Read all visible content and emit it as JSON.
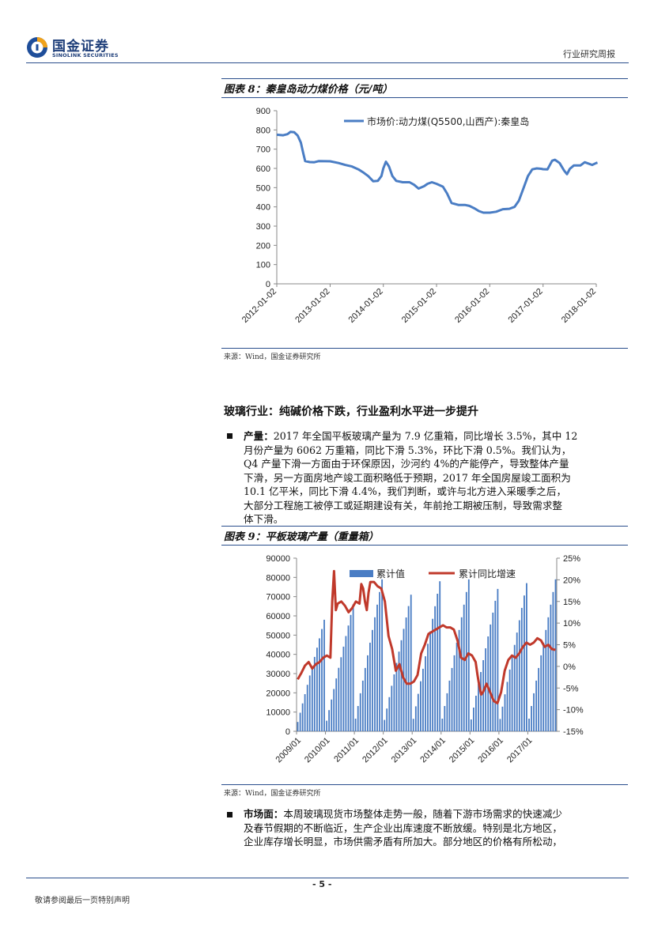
{
  "header": {
    "logo_cn": "国金证券",
    "logo_en": "SINOLINK SECURITIES",
    "report_type": "行业研究周报"
  },
  "figure8": {
    "title": "图表 8：秦皇岛动力煤价格（元/吨）",
    "source": "来源：Wind，国金证券研究所",
    "chart_data": {
      "type": "line",
      "title": "",
      "series": [
        {
          "name": "市场价:动力煤(Q5500,山西产):秦皇岛",
          "color": "#4a7dc4",
          "points": [
            [
              "2012-01-02",
              775
            ],
            [
              "2012-02-15",
              772
            ],
            [
              "2012-03-15",
              778
            ],
            [
              "2012-04-05",
              790
            ],
            [
              "2012-05-01",
              788
            ],
            [
              "2012-05-25",
              770
            ],
            [
              "2012-06-15",
              735
            ],
            [
              "2012-07-01",
              680
            ],
            [
              "2012-07-15",
              638
            ],
            [
              "2012-08-15",
              633
            ],
            [
              "2012-09-15",
              632
            ],
            [
              "2012-10-15",
              638
            ],
            [
              "2013-01-02",
              637
            ],
            [
              "2013-03-01",
              628
            ],
            [
              "2013-04-15",
              618
            ],
            [
              "2013-06-01",
              610
            ],
            [
              "2013-07-15",
              595
            ],
            [
              "2013-08-20",
              578
            ],
            [
              "2013-09-20",
              560
            ],
            [
              "2013-10-25",
              533
            ],
            [
              "2013-11-25",
              535
            ],
            [
              "2013-12-20",
              560
            ],
            [
              "2014-01-02",
              600
            ],
            [
              "2014-01-20",
              635
            ],
            [
              "2014-02-10",
              610
            ],
            [
              "2014-03-05",
              560
            ],
            [
              "2014-04-01",
              535
            ],
            [
              "2014-05-15",
              528
            ],
            [
              "2014-07-01",
              528
            ],
            [
              "2014-08-01",
              515
            ],
            [
              "2014-09-01",
              495
            ],
            [
              "2014-10-10",
              508
            ],
            [
              "2014-11-01",
              520
            ],
            [
              "2014-12-01",
              528
            ],
            [
              "2015-01-02",
              520
            ],
            [
              "2015-02-15",
              505
            ],
            [
              "2015-03-15",
              470
            ],
            [
              "2015-04-15",
              420
            ],
            [
              "2015-06-01",
              410
            ],
            [
              "2015-07-15",
              410
            ],
            [
              "2015-08-15",
              405
            ],
            [
              "2015-09-20",
              392
            ],
            [
              "2015-10-20",
              378
            ],
            [
              "2015-11-20",
              370
            ],
            [
              "2016-01-02",
              370
            ],
            [
              "2016-02-15",
              375
            ],
            [
              "2016-04-01",
              388
            ],
            [
              "2016-05-15",
              390
            ],
            [
              "2016-06-20",
              400
            ],
            [
              "2016-07-20",
              432
            ],
            [
              "2016-08-20",
              495
            ],
            [
              "2016-09-20",
              560
            ],
            [
              "2016-10-20",
              595
            ],
            [
              "2016-11-20",
              600
            ],
            [
              "2016-12-20",
              598
            ],
            [
              "2017-01-02",
              596
            ],
            [
              "2017-02-01",
              595
            ],
            [
              "2017-03-05",
              640
            ],
            [
              "2017-03-25",
              645
            ],
            [
              "2017-04-25",
              628
            ],
            [
              "2017-05-25",
              590
            ],
            [
              "2017-06-15",
              570
            ],
            [
              "2017-07-05",
              598
            ],
            [
              "2017-08-01",
              615
            ],
            [
              "2017-09-15",
              615
            ],
            [
              "2017-10-15",
              632
            ],
            [
              "2017-11-10",
              625
            ],
            [
              "2017-12-05",
              618
            ],
            [
              "2018-01-02",
              628
            ],
            [
              "2018-01-10",
              630
            ]
          ]
        }
      ],
      "x_tick_labels": [
        "2012-01-02",
        "2013-01-02",
        "2014-01-02",
        "2015-01-02",
        "2016-01-02",
        "2017-01-02",
        "2018-01-02"
      ],
      "ylim": [
        0,
        900
      ],
      "y_ticks": [
        0,
        100,
        200,
        300,
        400,
        500,
        600,
        700,
        800,
        900
      ],
      "grid": false,
      "legend": "top-center"
    }
  },
  "section": {
    "heading": "玻璃行业：纯碱价格下跌，行业盈利水平进一步提升",
    "para1_label": "产量：",
    "para1_lines": [
      "2017 年全国平板玻璃产量为 7.9 亿重箱，同比增长 3.5%，其中 12",
      "月份产量为 6062 万重箱，同比下滑 5.3%，环比下滑 0.5%。我们认为，",
      "Q4 产量下滑一方面由于环保原因，沙河约 4%的产能停产，导致整体产量",
      "下滑，另一方面房地产竣工面积略低于预期，2017 年全国房屋竣工面积为",
      "10.1 亿平米，同比下滑 4.4%，我们判断，或许与北方进入采暖季之后，",
      "大部分工程施工被停工或延期建设有关，年前抢工期被压制，导致需求整",
      "体下滑。"
    ],
    "para2_label": "市场面：",
    "para2_lines": [
      "本周玻璃现货市场整体走势一般，随着下游市场需求的快速减少",
      "及春节假期的不断临近，生产企业出库速度不断放缓。特别是北方地区，",
      "企业库存增长明显，市场供需矛盾有所加大。部分地区的价格有所松动，"
    ]
  },
  "figure9": {
    "title": "图表 9：平板玻璃产量（重量箱）",
    "source": "来源：Wind，国金证券研究所",
    "chart_data": {
      "type": "bar",
      "title": "",
      "series": [
        {
          "name": "累计值",
          "kind": "bar",
          "axis": "left",
          "color": "#4a7dc4",
          "years": [
            "2009",
            "2010",
            "2011",
            "2012",
            "2013",
            "2014",
            "2015",
            "2016",
            "2017"
          ],
          "annual_totals": [
            58000,
            66000,
            79000,
            71000,
            78000,
            79000,
            74000,
            77000,
            79000
          ]
        },
        {
          "name": "累计同比增速",
          "kind": "line",
          "axis": "right",
          "color": "#c0392b",
          "points": [
            [
              0,
              -3.0
            ],
            [
              2,
              -1.5
            ],
            [
              4,
              0.2
            ],
            [
              6,
              1.0
            ],
            [
              8,
              -0.5
            ],
            [
              10,
              0.5
            ],
            [
              12,
              1.0
            ],
            [
              14,
              2.0
            ],
            [
              16,
              2.5
            ],
            [
              18,
              2.0
            ],
            [
              19,
              15.0
            ],
            [
              20,
              22.0
            ],
            [
              21,
              13.0
            ],
            [
              22,
              14.5
            ],
            [
              24,
              15.0
            ],
            [
              26,
              14.0
            ],
            [
              28,
              12.5
            ],
            [
              30,
              13.5
            ],
            [
              32,
              15.0
            ],
            [
              34,
              14.5
            ],
            [
              35,
              19.0
            ],
            [
              36,
              18.0
            ],
            [
              37,
              15.0
            ],
            [
              38,
              13.0
            ],
            [
              39,
              17.0
            ],
            [
              40,
              19.5
            ],
            [
              42,
              19.5
            ],
            [
              44,
              18.5
            ],
            [
              46,
              18.0
            ],
            [
              48,
              15.0
            ],
            [
              50,
              7.0
            ],
            [
              52,
              4.0
            ],
            [
              54,
              -1.0
            ],
            [
              56,
              0.5
            ],
            [
              58,
              -2.5
            ],
            [
              60,
              -4.0
            ],
            [
              62,
              -4.0
            ],
            [
              64,
              -3.5
            ],
            [
              66,
              -2.0
            ],
            [
              68,
              3.0
            ],
            [
              70,
              5.0
            ],
            [
              72,
              7.5
            ],
            [
              74,
              8.0
            ],
            [
              76,
              8.5
            ],
            [
              78,
              9.0
            ],
            [
              80,
              9.5
            ],
            [
              82,
              9.0
            ],
            [
              84,
              9.0
            ],
            [
              86,
              8.5
            ],
            [
              88,
              6.0
            ],
            [
              90,
              2.0
            ],
            [
              92,
              1.5
            ],
            [
              94,
              3.0
            ],
            [
              96,
              2.5
            ],
            [
              98,
              1.0
            ],
            [
              99,
              -2.0
            ],
            [
              100,
              -4.5
            ],
            [
              101,
              -6.5
            ],
            [
              102,
              -6.0
            ],
            [
              104,
              -4.0
            ],
            [
              106,
              -6.0
            ],
            [
              108,
              -8.0
            ],
            [
              110,
              -8.5
            ],
            [
              112,
              -6.0
            ],
            [
              114,
              -1.0
            ],
            [
              116,
              1.5
            ],
            [
              118,
              2.5
            ],
            [
              120,
              2.0
            ],
            [
              122,
              3.0
            ],
            [
              124,
              4.5
            ],
            [
              126,
              5.5
            ],
            [
              128,
              5.0
            ],
            [
              130,
              5.5
            ],
            [
              132,
              6.5
            ],
            [
              134,
              6.0
            ],
            [
              136,
              4.5
            ],
            [
              138,
              5.0
            ],
            [
              140,
              4.0
            ],
            [
              142,
              3.8
            ]
          ]
        }
      ],
      "x_tick_labels": [
        "2009/01",
        "2010/01",
        "2011/01",
        "2012/01",
        "2013/01",
        "2014/01",
        "2015/01",
        "2016/01",
        "2017/01"
      ],
      "ylim_left": [
        0,
        90000
      ],
      "y_ticks_left": [
        0,
        10000,
        20000,
        30000,
        40000,
        50000,
        60000,
        70000,
        80000,
        90000
      ],
      "ylim_right": [
        -15,
        25
      ],
      "y_ticks_right": [
        "-15%",
        "-10%",
        "-5%",
        "0%",
        "5%",
        "10%",
        "15%",
        "20%",
        "25%"
      ],
      "legend": "top-center",
      "grid": false
    }
  },
  "footer": {
    "page": "- 5 -",
    "disclaimer": "敬请参阅最后一页特别声明"
  }
}
